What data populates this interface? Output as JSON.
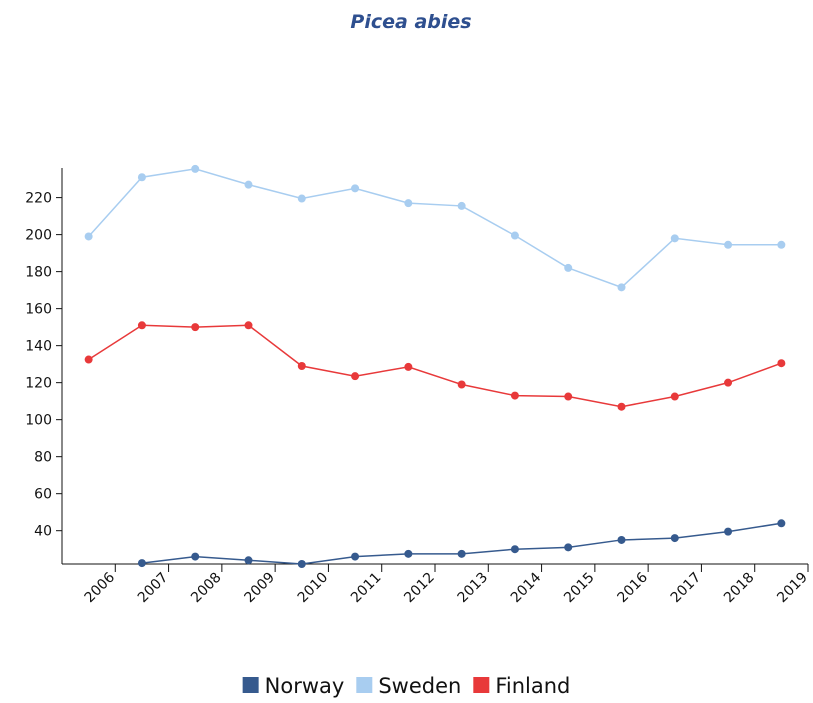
{
  "chart_data": {
    "type": "line",
    "title": "Picea abies",
    "x": [
      2005.5,
      2006.5,
      2007.5,
      2008.5,
      2009.5,
      2010.5,
      2011.5,
      2012.5,
      2013.5,
      2014.5,
      2015.5,
      2016.5,
      2017.5,
      2018.5
    ],
    "series": [
      {
        "name": "Norway",
        "color": "#365a8e",
        "values": [
          null,
          22.5,
          26,
          24,
          22,
          26,
          27.5,
          27.5,
          30,
          31,
          35,
          36,
          39.5,
          44
        ]
      },
      {
        "name": "Sweden",
        "color": "#a8cdf0",
        "values": [
          199,
          231,
          235.5,
          227,
          219.5,
          225,
          217,
          215.5,
          199.5,
          182,
          171.5,
          198,
          194.5,
          194.5
        ]
      },
      {
        "name": "Finland",
        "color": "#e8393a",
        "values": [
          132.5,
          151,
          150,
          151,
          129,
          123.5,
          128.5,
          119,
          113,
          112.5,
          107,
          112.5,
          120,
          130.5
        ]
      }
    ],
    "xlim": [
      2005,
      2019
    ],
    "xticks": [
      2006,
      2007,
      2008,
      2009,
      2010,
      2011,
      2012,
      2013,
      2014,
      2015,
      2016,
      2017,
      2018,
      2019
    ],
    "ylim": [
      22,
      236
    ],
    "yticks": [
      40,
      60,
      80,
      100,
      120,
      140,
      160,
      180,
      200,
      220
    ],
    "legend": "bottom"
  }
}
